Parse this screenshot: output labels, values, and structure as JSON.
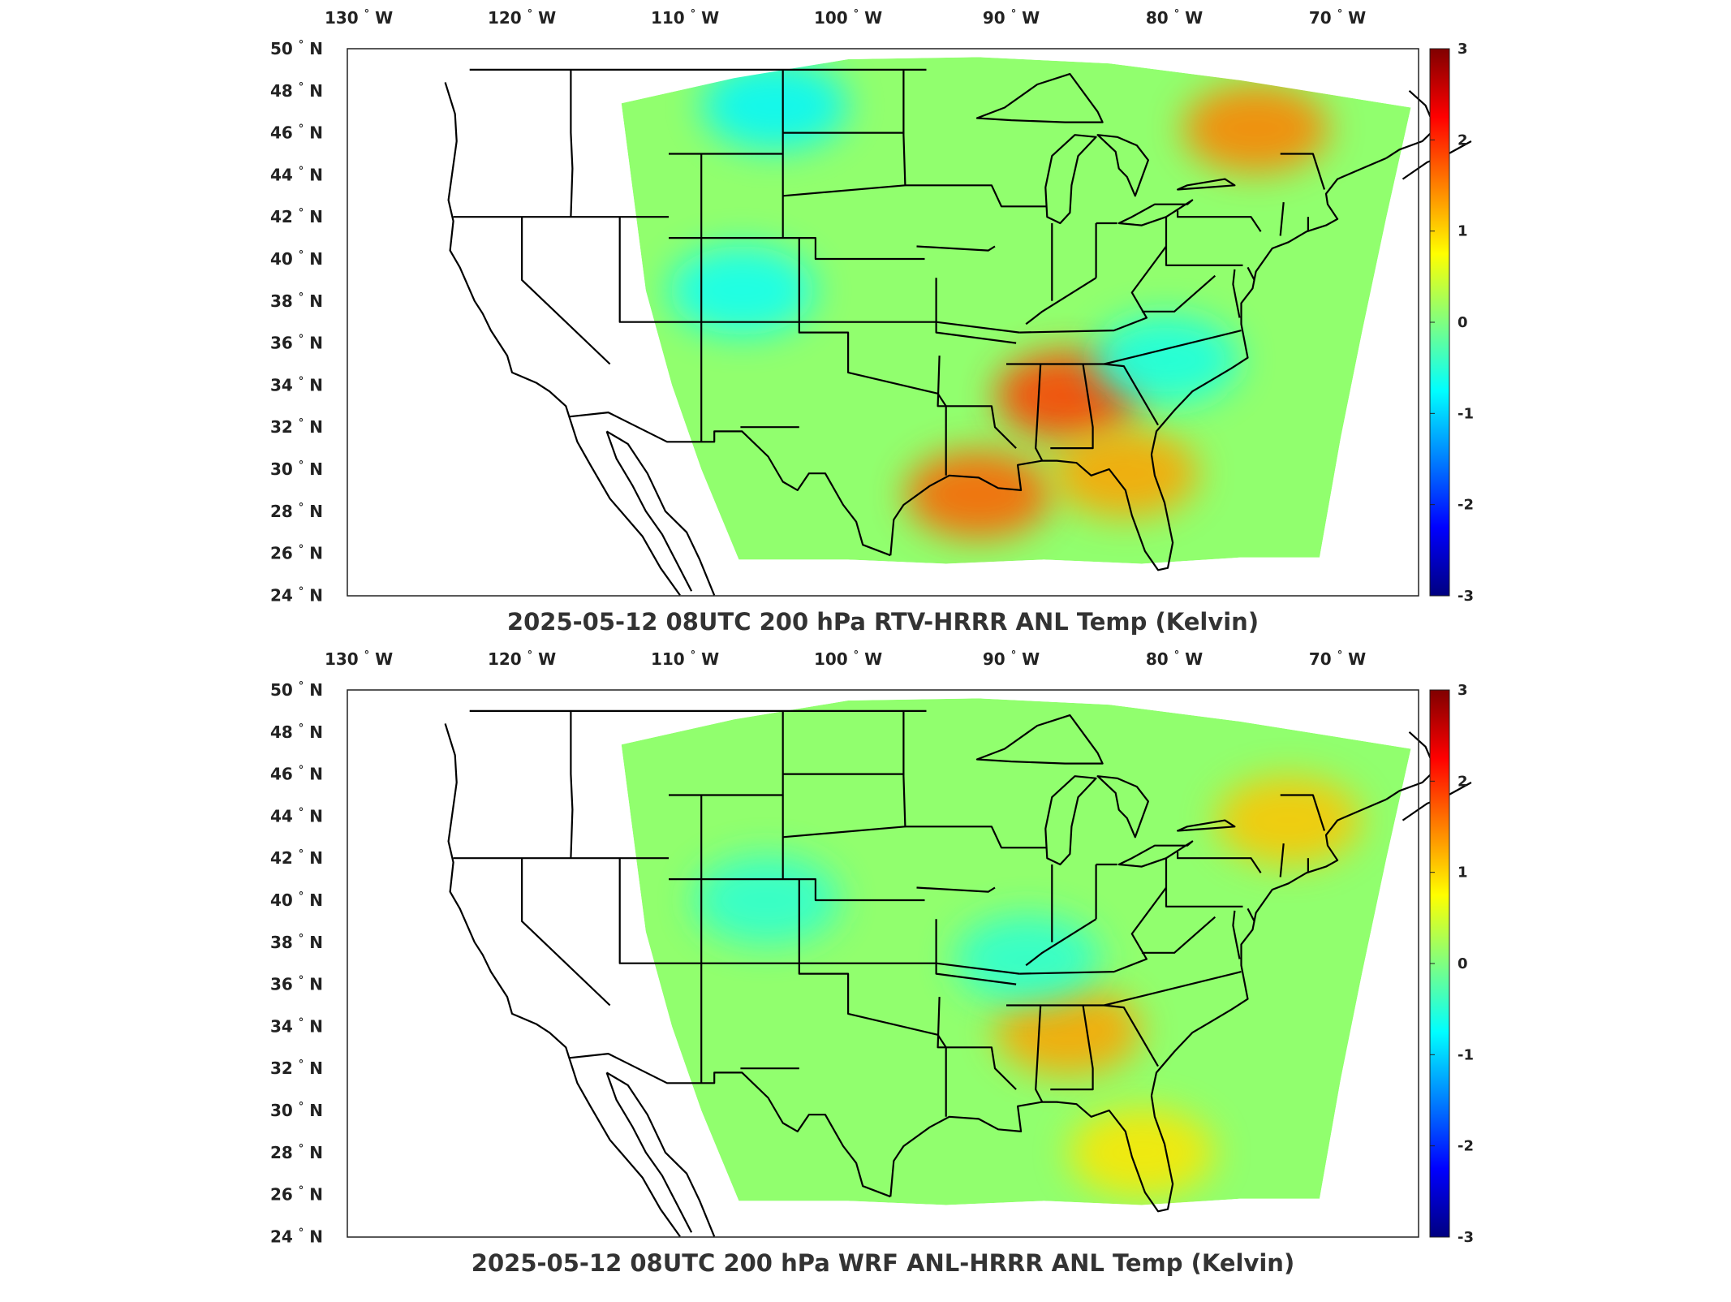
{
  "figure": {
    "colormap": "jet",
    "colorbar_ticks": [
      "3",
      "2",
      "1",
      "0",
      "-1",
      "-2",
      "-3"
    ],
    "lon_ticks": [
      "130",
      "120",
      "110",
      "100",
      "90",
      "80",
      "70"
    ],
    "lon_hemisphere": "W",
    "lat_ticks": [
      "50",
      "48",
      "46",
      "44",
      "42",
      "40",
      "38",
      "36",
      "34",
      "32",
      "30",
      "28",
      "26",
      "24"
    ],
    "lat_hemisphere": "N",
    "degree_symbol": "°"
  },
  "panels": [
    {
      "id": "top",
      "title": "2025-05-12 08UTC 200 hPa RTV-HRRR ANL Temp (Kelvin)",
      "field_range": [
        -3,
        3
      ],
      "hotspots": [
        {
          "lon": -86.5,
          "lat": 33.5,
          "value": 1.9
        },
        {
          "lon": -92.0,
          "lat": 28.8,
          "value": 1.7
        },
        {
          "lon": -75.0,
          "lat": 46.2,
          "value": 1.5
        },
        {
          "lon": -83.0,
          "lat": 29.8,
          "value": 1.3
        },
        {
          "lon": -104.5,
          "lat": 47.3,
          "value": -0.8
        },
        {
          "lon": -106.5,
          "lat": 38.5,
          "value": -0.7
        },
        {
          "lon": -80.5,
          "lat": 35.2,
          "value": -0.6
        }
      ]
    },
    {
      "id": "bottom",
      "title": "2025-05-12 08UTC 200 hPa WRF ANL-HRRR ANL Temp (Kelvin)",
      "field_range": [
        -3,
        3
      ],
      "hotspots": [
        {
          "lon": -86.5,
          "lat": 33.8,
          "value": 1.3
        },
        {
          "lon": -73.0,
          "lat": 43.8,
          "value": 1.1
        },
        {
          "lon": -82.0,
          "lat": 28.0,
          "value": 0.9
        },
        {
          "lon": -105.0,
          "lat": 40.0,
          "value": -0.5
        },
        {
          "lon": -89.0,
          "lat": 37.2,
          "value": -0.5
        }
      ]
    }
  ]
}
